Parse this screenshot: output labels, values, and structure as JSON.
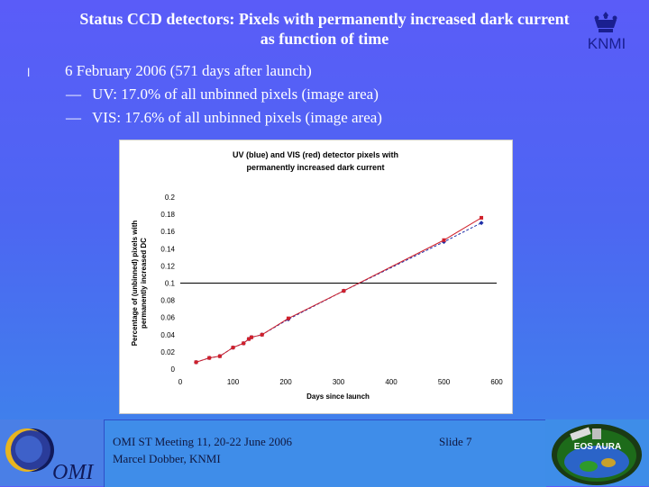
{
  "slide": {
    "title_line1": "Status CCD detectors: Pixels with permanently increased dark current",
    "title_line2": "as function of time",
    "bullets": [
      {
        "mark": "l",
        "text": "6 February 2006 (571 days after launch)"
      },
      {
        "mark": "—",
        "text": "UV: 17.0% of all unbinned pixels (image area)"
      },
      {
        "mark": "—",
        "text": "VIS: 17.6% of all unbinned pixels (image area)"
      }
    ],
    "logos": {
      "knmi": "KNMI",
      "omi": "OMI",
      "aura": "EOS AURA"
    },
    "footer": {
      "meeting": "OMI ST Meeting 11, 20-22 June 2006",
      "author": "Marcel Dobber, KNMI",
      "slide_no": "Slide 7"
    },
    "colors": {
      "background_top": "#5a5cf8",
      "background_bottom": "#3b88ea",
      "uv_series": "#1f2fa8",
      "vis_series": "#d0202a"
    }
  },
  "chart_data": {
    "type": "line",
    "title": "UV (blue) and VIS (red) detector pixels with permanently increased dark current",
    "xlabel": "Days since launch",
    "ylabel": "Percentage of (unbinned) pixels with permanently increased DC",
    "xlim": [
      0,
      600
    ],
    "ylim": [
      0,
      0.2
    ],
    "xticks": [
      0,
      100,
      200,
      300,
      400,
      500,
      600
    ],
    "yticks": [
      0,
      0.02,
      0.04,
      0.06,
      0.08,
      0.1,
      0.12,
      0.14,
      0.16,
      0.18,
      0.2
    ],
    "reference_line": 0.1,
    "series": [
      {
        "name": "UV",
        "color": "#1f2fa8",
        "x": [
          30,
          55,
          75,
          100,
          120,
          130,
          135,
          155,
          205,
          310,
          500,
          571
        ],
        "y": [
          0.008,
          0.013,
          0.015,
          0.025,
          0.03,
          0.035,
          0.037,
          0.04,
          0.058,
          0.091,
          0.148,
          0.17
        ]
      },
      {
        "name": "VIS",
        "color": "#d0202a",
        "x": [
          30,
          55,
          75,
          100,
          120,
          130,
          135,
          155,
          205,
          310,
          500,
          571
        ],
        "y": [
          0.008,
          0.013,
          0.015,
          0.025,
          0.03,
          0.035,
          0.037,
          0.04,
          0.059,
          0.091,
          0.15,
          0.176
        ]
      }
    ],
    "grid": false,
    "legend": "none"
  }
}
